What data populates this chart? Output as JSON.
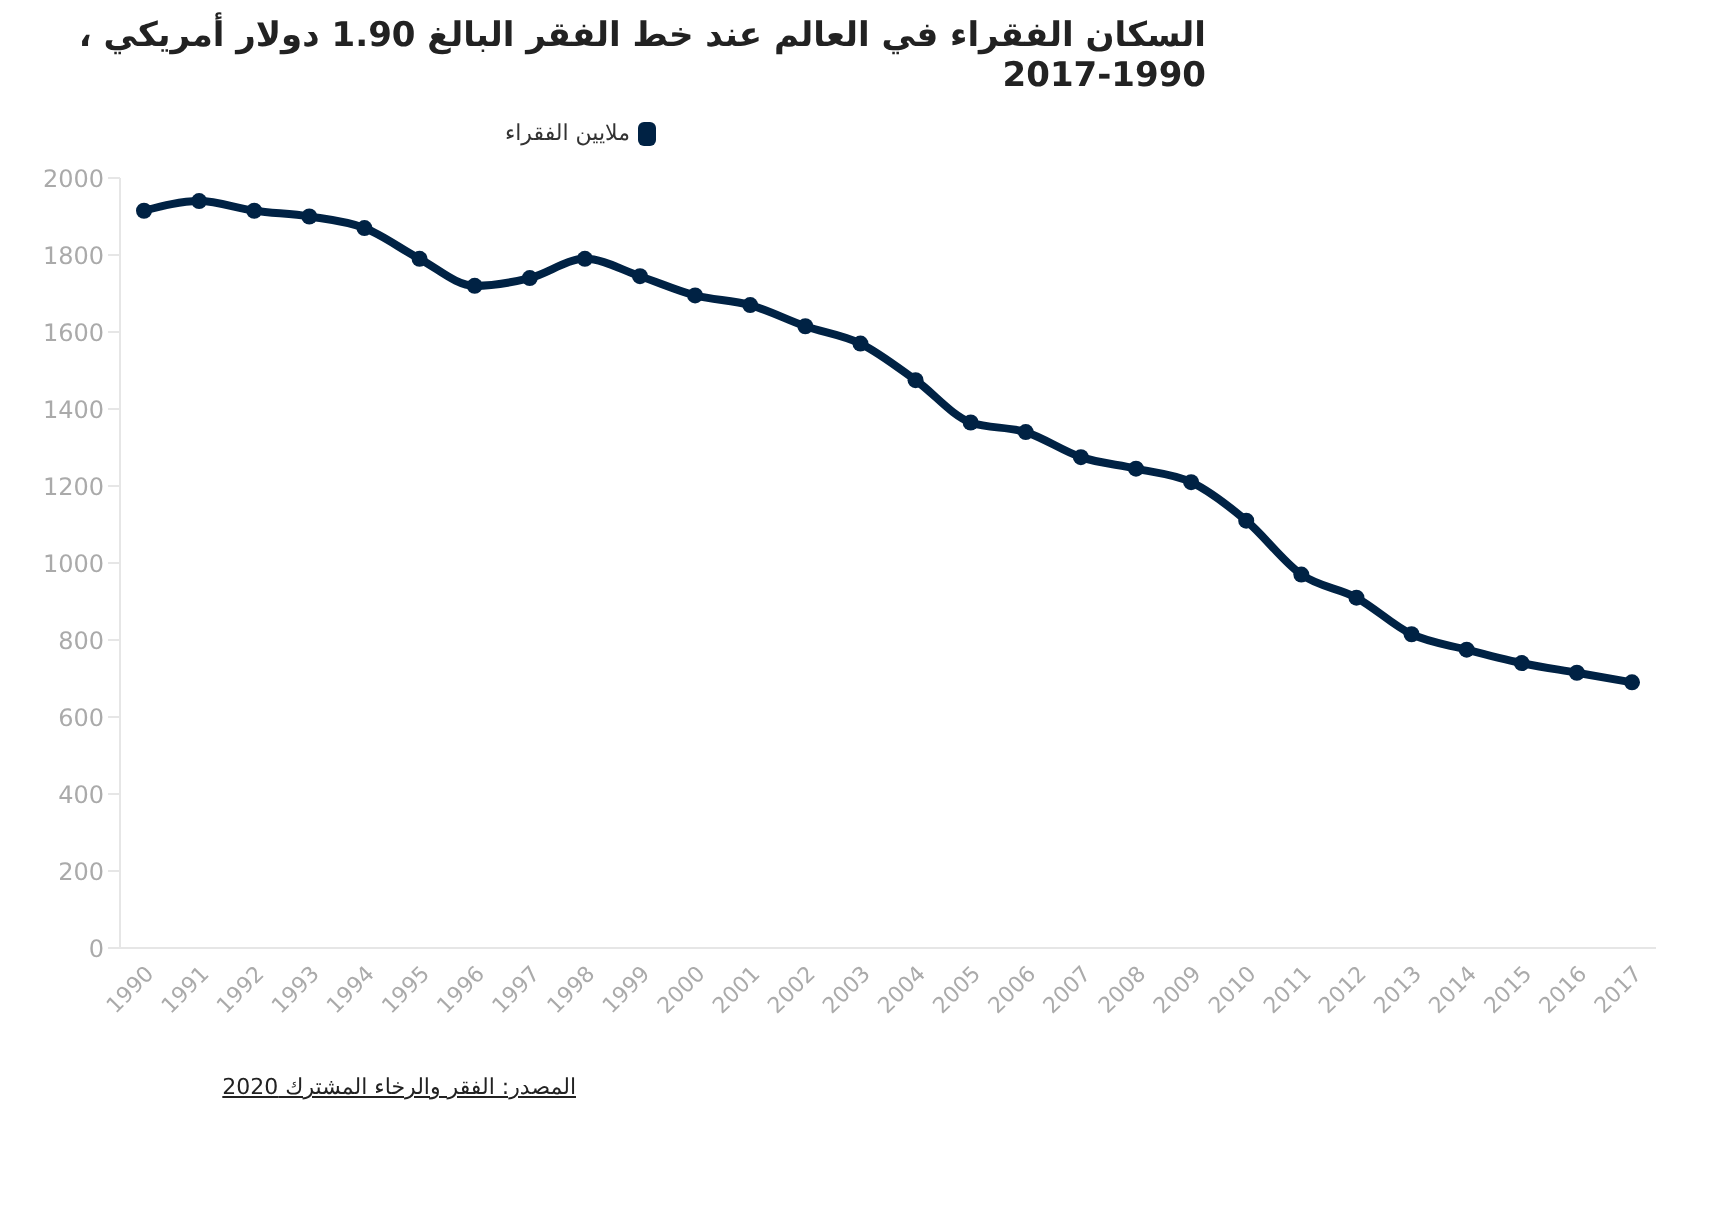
{
  "chart_data": {
    "type": "line",
    "title": "السكان الفقراء في العالم عند خط الفقر البالغ 1.90 دولار أمريكي ، 1990-2017",
    "categories": [
      "1990",
      "1991",
      "1992",
      "1993",
      "1994",
      "1995",
      "1996",
      "1997",
      "1998",
      "1999",
      "2000",
      "2001",
      "2002",
      "2003",
      "2004",
      "2005",
      "2006",
      "2007",
      "2008",
      "2009",
      "2010",
      "2011",
      "2012",
      "2013",
      "2014",
      "2015",
      "2016",
      "2017"
    ],
    "series": [
      {
        "name": "ملايين الفقراء",
        "color": "#002244",
        "values": [
          1915,
          1940,
          1915,
          1900,
          1870,
          1790,
          1720,
          1740,
          1790,
          1745,
          1695,
          1670,
          1615,
          1570,
          1475,
          1365,
          1340,
          1275,
          1245,
          1210,
          1110,
          970,
          910,
          815,
          775,
          740,
          715,
          690
        ]
      }
    ],
    "ylim": [
      0,
      2000
    ],
    "yticks": [
      0,
      200,
      400,
      600,
      800,
      1000,
      1200,
      1400,
      1600,
      1800,
      2000
    ],
    "grid": false,
    "legend": "top left",
    "marker": "circle",
    "line_style": "solid",
    "annotations": [
      "المصدر: الفقر والرخاء المشترك 2020"
    ]
  }
}
